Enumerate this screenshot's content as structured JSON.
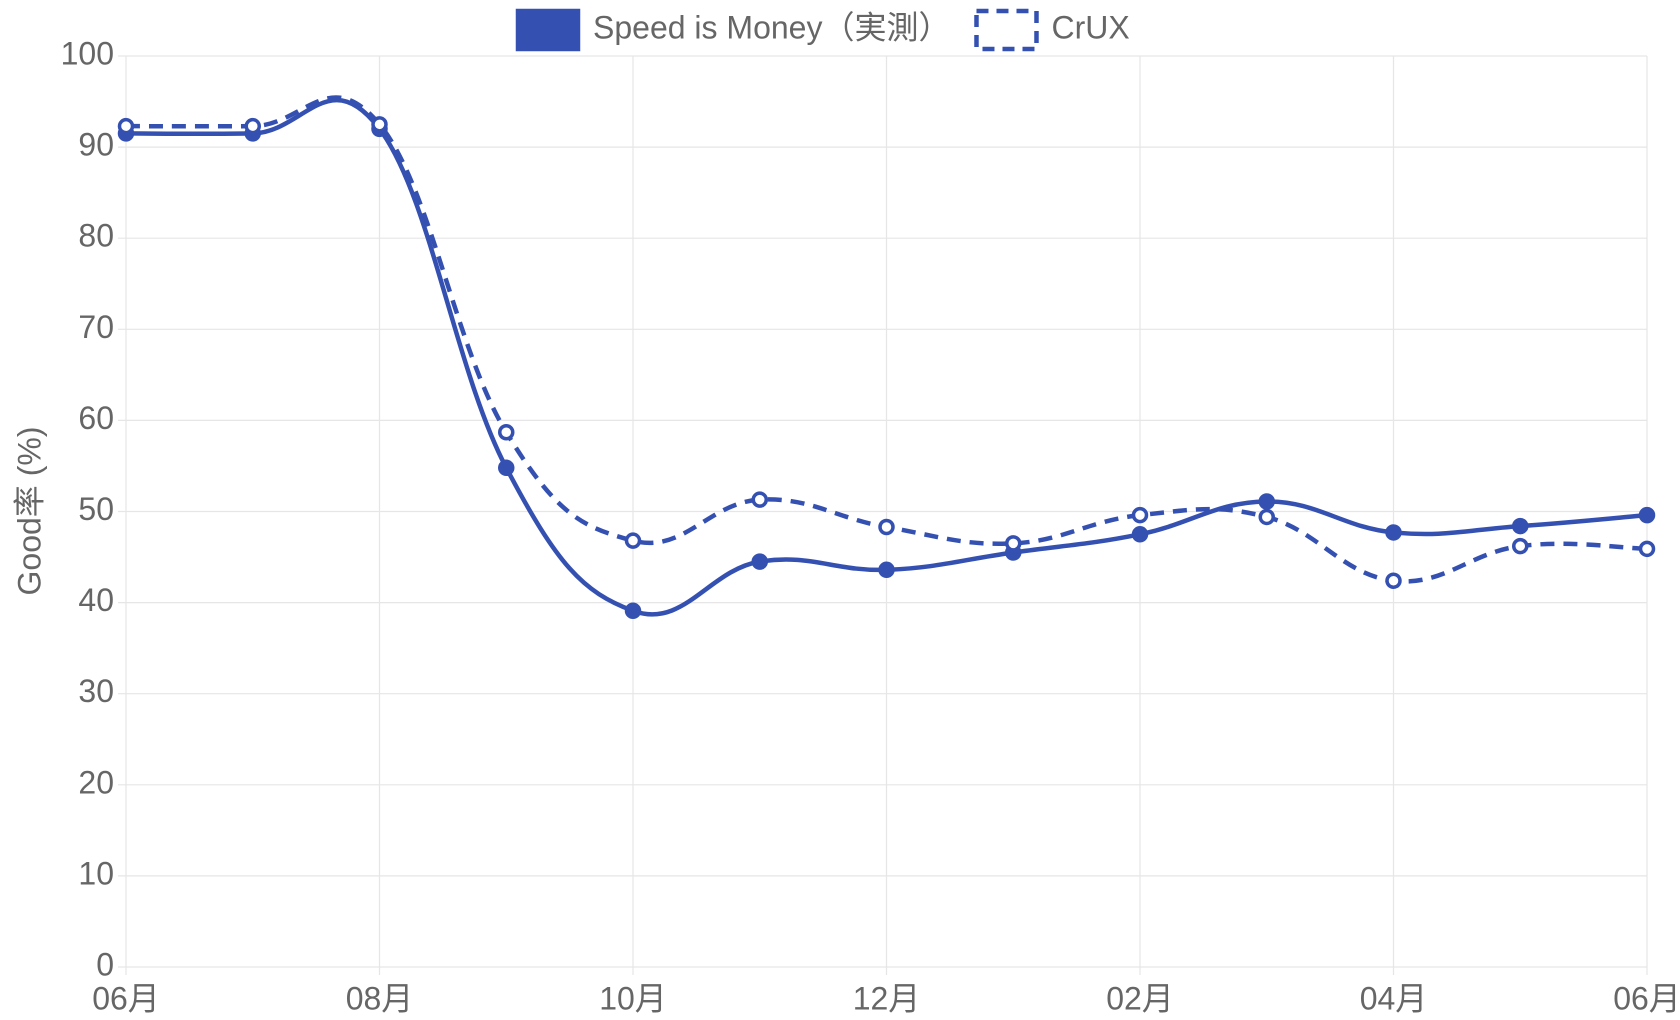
{
  "chart_data": {
    "type": "line",
    "categories": [
      "06月",
      null,
      "08月",
      null,
      "10月",
      null,
      "12月",
      null,
      "02月",
      null,
      "04月",
      null,
      "06月"
    ],
    "y_label": "Good率 (%)",
    "series": [
      {
        "name": "Speed is Money（実測）",
        "color": "#3451b2",
        "dashed": false,
        "values": [
          91.5,
          91.5,
          92,
          54.8,
          39.1,
          44.5,
          43.6,
          45.5,
          47.5,
          51.1,
          47.7,
          48.4,
          49.6
        ]
      },
      {
        "name": "CrUX",
        "color": "#3451b2",
        "dashed": true,
        "values": [
          92.3,
          92.3,
          92.5,
          58.7,
          46.8,
          51.3,
          48.3,
          46.5,
          49.6,
          49.4,
          42.4,
          46.2,
          45.9
        ]
      }
    ],
    "ylim": [
      0,
      100
    ],
    "yticks": [
      0,
      10,
      20,
      30,
      40,
      50,
      60,
      70,
      80,
      90,
      100
    ],
    "grid": true,
    "legend": "top"
  }
}
